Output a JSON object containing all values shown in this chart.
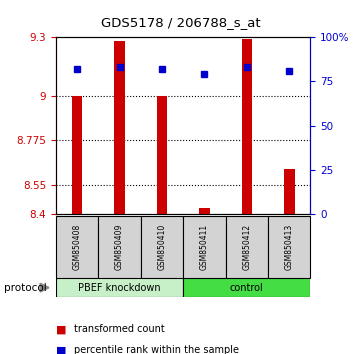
{
  "title": "GDS5178 / 206788_s_at",
  "samples": [
    "GSM850408",
    "GSM850409",
    "GSM850410",
    "GSM850411",
    "GSM850412",
    "GSM850413"
  ],
  "red_values": [
    9.0,
    9.28,
    9.0,
    8.43,
    9.29,
    8.63
  ],
  "blue_values": [
    82,
    83,
    82,
    79,
    83,
    81
  ],
  "y_min": 8.4,
  "y_max": 9.3,
  "y_ticks": [
    8.4,
    8.55,
    8.775,
    9.0,
    9.3
  ],
  "y2_ticks": [
    0,
    25,
    50,
    75,
    100
  ],
  "group1_label": "PBEF knockdown",
  "group1_color": "#c8f0c8",
  "group2_label": "control",
  "group2_color": "#44dd44",
  "bar_color": "#cc0000",
  "dot_color": "#0000cc",
  "left_tick_color": "#cc0000",
  "right_tick_color": "#0000cc",
  "protocol_label": "protocol",
  "legend_red": "transformed count",
  "legend_blue": "percentile rank within the sample",
  "label_area_color": "#d3d3d3",
  "bar_width": 0.25
}
